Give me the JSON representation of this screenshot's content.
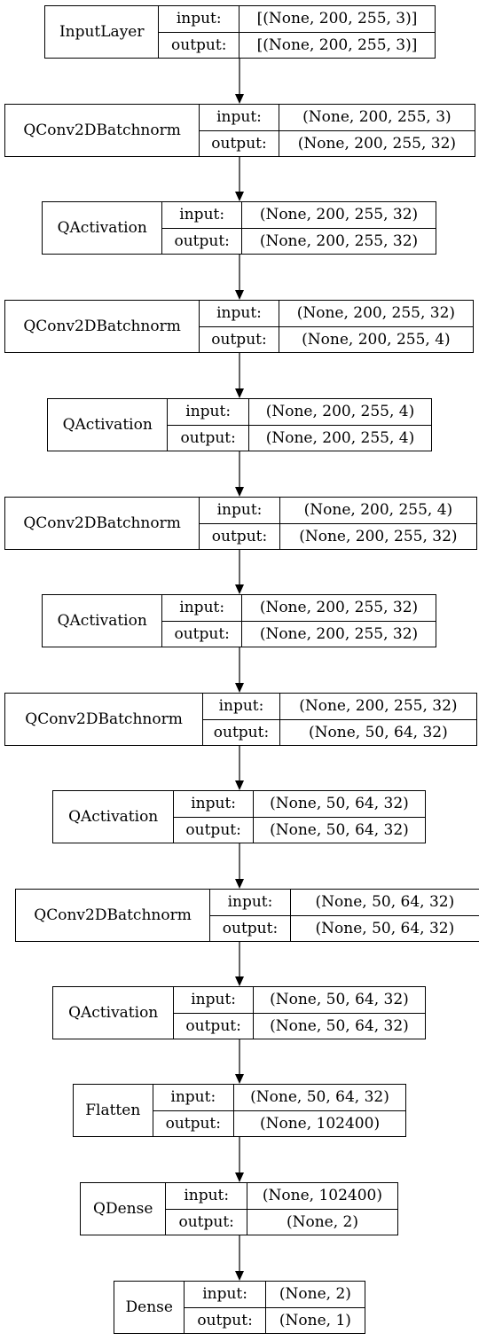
{
  "labels": {
    "input": "input:",
    "output": "output:"
  },
  "layers": [
    {
      "name": "InputLayer",
      "input": "[(None, 200, 255, 3)]",
      "output": "[(None, 200, 255, 3)]"
    },
    {
      "name": "QConv2DBatchnorm",
      "input": "(None, 200, 255, 3)",
      "output": "(None, 200, 255, 32)"
    },
    {
      "name": "QActivation",
      "input": "(None, 200, 255, 32)",
      "output": "(None, 200, 255, 32)"
    },
    {
      "name": "QConv2DBatchnorm",
      "input": "(None, 200, 255, 32)",
      "output": "(None, 200, 255, 4)"
    },
    {
      "name": "QActivation",
      "input": "(None, 200, 255, 4)",
      "output": "(None, 200, 255, 4)"
    },
    {
      "name": "QConv2DBatchnorm",
      "input": "(None, 200, 255, 4)",
      "output": "(None, 200, 255, 32)"
    },
    {
      "name": "QActivation",
      "input": "(None, 200, 255, 32)",
      "output": "(None, 200, 255, 32)"
    },
    {
      "name": "QConv2DBatchnorm",
      "input": "(None, 200, 255, 32)",
      "output": "(None, 50, 64, 32)"
    },
    {
      "name": "QActivation",
      "input": "(None, 50, 64, 32)",
      "output": "(None, 50, 64, 32)"
    },
    {
      "name": "QConv2DBatchnorm",
      "input": "(None, 50, 64, 32)",
      "output": "(None, 50, 64, 32)"
    },
    {
      "name": "QActivation",
      "input": "(None, 50, 64, 32)",
      "output": "(None, 50, 64, 32)"
    },
    {
      "name": "Flatten",
      "input": "(None, 50, 64, 32)",
      "output": "(None, 102400)"
    },
    {
      "name": "QDense",
      "input": "(None, 102400)",
      "output": "(None, 2)"
    },
    {
      "name": "Dense",
      "input": "(None, 2)",
      "output": "(None, 1)"
    }
  ]
}
